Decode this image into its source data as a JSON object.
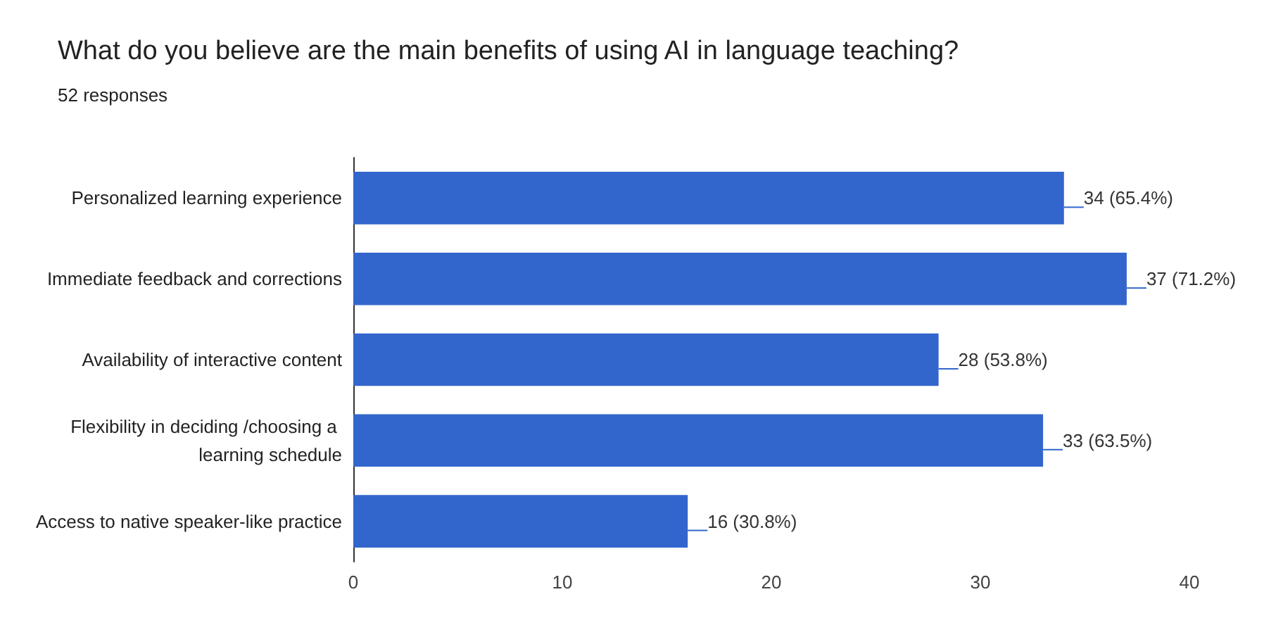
{
  "chart_data": {
    "type": "bar",
    "orientation": "horizontal",
    "title": "What do you believe are the main benefits of using AI in language teaching?",
    "subtitle": "52 responses",
    "categories": [
      "Personalized learning experience",
      "Immediate feedback and corrections",
      "Availability of interactive content",
      "Flexibility in deciding /choosing a learning schedule",
      "Access to native speaker-like practice"
    ],
    "values": [
      34,
      37,
      28,
      33,
      16
    ],
    "value_labels": [
      "34 (65.4%)",
      "37 (71.2%)",
      "28 (53.8%)",
      "33 (63.5%)",
      "16 (30.8%)"
    ],
    "color": "#3366cc",
    "xlim": [
      0,
      40
    ],
    "xticks": [
      0,
      10,
      20,
      30,
      40
    ],
    "grid": false
  }
}
